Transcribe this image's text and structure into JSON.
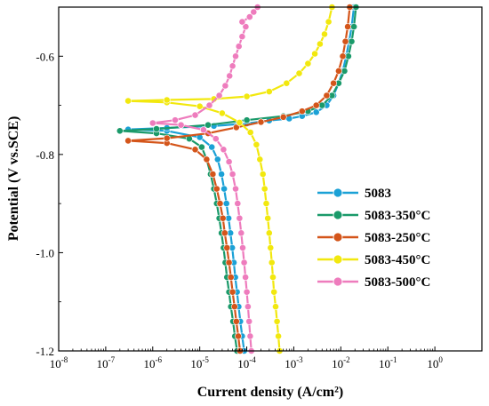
{
  "chart_data": {
    "type": "line",
    "xlabel": "Current density (A/cm²)",
    "ylabel": "Potential (V vs.SCE)",
    "x_scale": "log",
    "xlim": [
      1e-08,
      10.0
    ],
    "ylim": [
      -1.2,
      -0.5
    ],
    "x_ticks": [
      {
        "value": 1e-08,
        "mant": "10",
        "exp": "-8"
      },
      {
        "value": 1e-07,
        "mant": "10",
        "exp": "-7"
      },
      {
        "value": 1e-06,
        "mant": "10",
        "exp": "-6"
      },
      {
        "value": 1e-05,
        "mant": "10",
        "exp": "-5"
      },
      {
        "value": 0.0001,
        "mant": "10",
        "exp": "-4"
      },
      {
        "value": 0.001,
        "mant": "10",
        "exp": "-3"
      },
      {
        "value": 0.01,
        "mant": "10",
        "exp": "-2"
      },
      {
        "value": 0.1,
        "mant": "10",
        "exp": "-1"
      },
      {
        "value": 1.0,
        "mant": "10",
        "exp": "0"
      }
    ],
    "y_ticks": [
      {
        "value": -0.6,
        "label": "-0.6"
      },
      {
        "value": -0.8,
        "label": "-0.8"
      },
      {
        "value": -1.0,
        "label": "-1.0"
      },
      {
        "value": -1.2,
        "label": "-1.2"
      }
    ],
    "grid": false,
    "legend_position": "center-right",
    "series": [
      {
        "name": "5083",
        "color": "#1ba1d6",
        "points": [
          [
            8.8e-05,
            -1.2
          ],
          [
            8e-05,
            -1.17
          ],
          [
            7.3e-05,
            -1.14
          ],
          [
            6.7e-05,
            -1.11
          ],
          [
            6.2e-05,
            -1.08
          ],
          [
            5.7e-05,
            -1.05
          ],
          [
            5.3e-05,
            -1.02
          ],
          [
            4.9e-05,
            -0.99
          ],
          [
            4.5e-05,
            -0.96
          ],
          [
            4.1e-05,
            -0.93
          ],
          [
            3.7e-05,
            -0.9
          ],
          [
            3.3e-05,
            -0.87
          ],
          [
            2.9e-05,
            -0.84
          ],
          [
            2.4e-05,
            -0.81
          ],
          [
            1.8e-05,
            -0.785
          ],
          [
            1e-05,
            -0.765
          ],
          [
            2e-06,
            -0.752
          ],
          [
            3e-07,
            -0.749
          ],
          [
            2e-06,
            -0.746
          ],
          [
            2e-05,
            -0.742
          ],
          [
            0.0001,
            -0.737
          ],
          [
            0.0003,
            -0.731
          ],
          [
            0.0008,
            -0.727
          ],
          [
            0.0015,
            -0.722
          ],
          [
            0.003,
            -0.714
          ],
          [
            0.005,
            -0.7
          ],
          [
            0.007,
            -0.68
          ],
          [
            0.009,
            -0.655
          ],
          [
            0.011,
            -0.63
          ],
          [
            0.013,
            -0.6
          ],
          [
            0.015,
            -0.57
          ],
          [
            0.017,
            -0.54
          ],
          [
            0.019,
            -0.5
          ]
        ]
      },
      {
        "name": "5083-350°C",
        "color": "#1a9a6a",
        "points": [
          [
            6.2e-05,
            -1.2
          ],
          [
            5.6e-05,
            -1.17
          ],
          [
            5.1e-05,
            -1.14
          ],
          [
            4.6e-05,
            -1.11
          ],
          [
            4.2e-05,
            -1.08
          ],
          [
            3.8e-05,
            -1.05
          ],
          [
            3.5e-05,
            -1.02
          ],
          [
            3.2e-05,
            -0.99
          ],
          [
            2.9e-05,
            -0.96
          ],
          [
            2.6e-05,
            -0.93
          ],
          [
            2.3e-05,
            -0.9
          ],
          [
            2e-05,
            -0.87
          ],
          [
            1.7e-05,
            -0.84
          ],
          [
            1.4e-05,
            -0.81
          ],
          [
            1.1e-05,
            -0.785
          ],
          [
            6e-06,
            -0.768
          ],
          [
            1.2e-06,
            -0.757
          ],
          [
            2e-07,
            -0.752
          ],
          [
            1.2e-06,
            -0.748
          ],
          [
            1.5e-05,
            -0.74
          ],
          [
            0.0001,
            -0.73
          ],
          [
            0.0006,
            -0.722
          ],
          [
            0.002,
            -0.712
          ],
          [
            0.004,
            -0.7
          ],
          [
            0.0065,
            -0.68
          ],
          [
            0.009,
            -0.655
          ],
          [
            0.012,
            -0.63
          ],
          [
            0.0145,
            -0.6
          ],
          [
            0.017,
            -0.57
          ],
          [
            0.019,
            -0.54
          ],
          [
            0.021,
            -0.5
          ]
        ]
      },
      {
        "name": "5083-250°C",
        "color": "#d4551a",
        "points": [
          [
            7.2e-05,
            -1.2
          ],
          [
            6.6e-05,
            -1.17
          ],
          [
            6e-05,
            -1.14
          ],
          [
            5.5e-05,
            -1.11
          ],
          [
            5e-05,
            -1.08
          ],
          [
            4.6e-05,
            -1.05
          ],
          [
            4.2e-05,
            -1.02
          ],
          [
            3.8e-05,
            -0.99
          ],
          [
            3.4e-05,
            -0.96
          ],
          [
            3.1e-05,
            -0.93
          ],
          [
            2.7e-05,
            -0.9
          ],
          [
            2.3e-05,
            -0.87
          ],
          [
            1.9e-05,
            -0.84
          ],
          [
            1.4e-05,
            -0.81
          ],
          [
            8e-06,
            -0.79
          ],
          [
            2e-06,
            -0.777
          ],
          [
            3e-07,
            -0.772
          ],
          [
            2e-06,
            -0.767
          ],
          [
            1.5e-05,
            -0.757
          ],
          [
            6e-05,
            -0.745
          ],
          [
            0.0002,
            -0.734
          ],
          [
            0.0006,
            -0.724
          ],
          [
            0.0015,
            -0.712
          ],
          [
            0.003,
            -0.7
          ],
          [
            0.005,
            -0.68
          ],
          [
            0.007,
            -0.655
          ],
          [
            0.009,
            -0.63
          ],
          [
            0.011,
            -0.6
          ],
          [
            0.0125,
            -0.57
          ],
          [
            0.014,
            -0.54
          ],
          [
            0.0155,
            -0.5
          ]
        ]
      },
      {
        "name": "5083-450°C",
        "color": "#f2e80e",
        "points": [
          [
            0.0005,
            -1.2
          ],
          [
            0.00047,
            -1.17
          ],
          [
            0.00044,
            -1.14
          ],
          [
            0.00041,
            -1.11
          ],
          [
            0.00038,
            -1.08
          ],
          [
            0.00036,
            -1.05
          ],
          [
            0.00034,
            -1.02
          ],
          [
            0.00032,
            -0.99
          ],
          [
            0.0003,
            -0.96
          ],
          [
            0.00028,
            -0.93
          ],
          [
            0.00026,
            -0.9
          ],
          [
            0.00024,
            -0.87
          ],
          [
            0.00022,
            -0.84
          ],
          [
            0.00019,
            -0.81
          ],
          [
            0.00016,
            -0.78
          ],
          [
            0.00012,
            -0.755
          ],
          [
            7e-05,
            -0.735
          ],
          [
            3e-05,
            -0.716
          ],
          [
            1e-05,
            -0.702
          ],
          [
            2e-06,
            -0.694
          ],
          [
            3e-07,
            -0.691
          ],
          [
            2e-06,
            -0.689
          ],
          [
            2e-05,
            -0.687
          ],
          [
            0.0001,
            -0.682
          ],
          [
            0.0003,
            -0.672
          ],
          [
            0.0007,
            -0.655
          ],
          [
            0.0013,
            -0.635
          ],
          [
            0.002,
            -0.615
          ],
          [
            0.0028,
            -0.595
          ],
          [
            0.0036,
            -0.575
          ],
          [
            0.0045,
            -0.555
          ],
          [
            0.0055,
            -0.53
          ],
          [
            0.0065,
            -0.5
          ]
        ]
      },
      {
        "name": "5083-500°C",
        "color": "#ee7cbd",
        "points": [
          [
            0.000125,
            -1.2
          ],
          [
            0.000118,
            -1.17
          ],
          [
            0.000112,
            -1.14
          ],
          [
            0.000106,
            -1.11
          ],
          [
            0.0001,
            -1.08
          ],
          [
            9.4e-05,
            -1.05
          ],
          [
            8.8e-05,
            -1.02
          ],
          [
            8.2e-05,
            -0.99
          ],
          [
            7.6e-05,
            -0.96
          ],
          [
            7e-05,
            -0.93
          ],
          [
            6.4e-05,
            -0.9
          ],
          [
            5.8e-05,
            -0.87
          ],
          [
            5e-05,
            -0.84
          ],
          [
            4.2e-05,
            -0.815
          ],
          [
            3.2e-05,
            -0.79
          ],
          [
            2.2e-05,
            -0.768
          ],
          [
            1.2e-05,
            -0.75
          ],
          [
            4e-06,
            -0.74
          ],
          [
            1e-06,
            -0.736
          ],
          [
            3e-06,
            -0.73
          ],
          [
            8e-06,
            -0.72
          ],
          [
            1.6e-05,
            -0.7
          ],
          [
            2.6e-05,
            -0.68
          ],
          [
            3.5e-05,
            -0.66
          ],
          [
            4.3e-05,
            -0.64
          ],
          [
            5e-05,
            -0.62
          ],
          [
            5.8e-05,
            -0.6
          ],
          [
            6.8e-05,
            -0.58
          ],
          [
            8e-05,
            -0.56
          ],
          [
            9.5e-05,
            -0.54
          ],
          [
            8e-05,
            -0.53
          ],
          [
            0.000115,
            -0.52
          ],
          [
            0.00014,
            -0.51
          ],
          [
            0.00017,
            -0.5
          ]
        ]
      }
    ]
  }
}
